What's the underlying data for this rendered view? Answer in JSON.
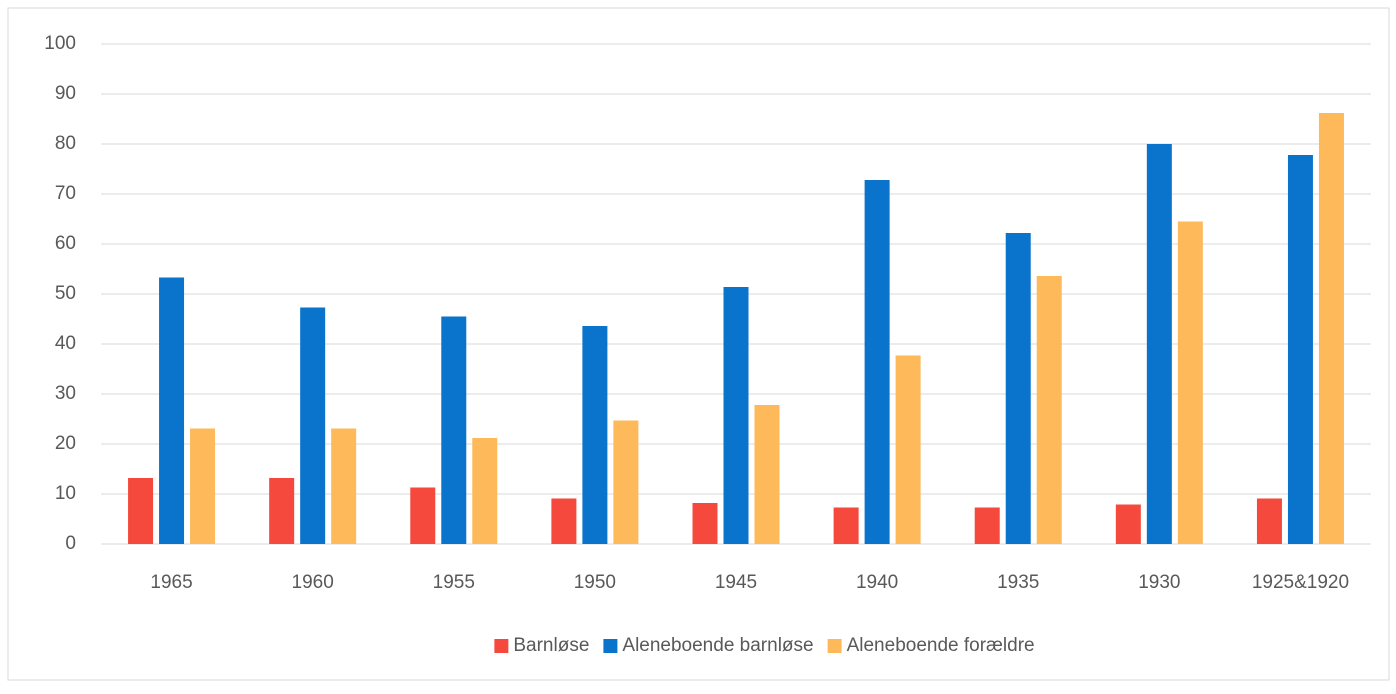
{
  "chart_data": {
    "type": "bar",
    "categories": [
      "1965",
      "1960",
      "1955",
      "1950",
      "1945",
      "1940",
      "1935",
      "1930",
      "1925&1920"
    ],
    "series": [
      {
        "name": "Barnløse",
        "color": "#f5493d",
        "values": [
          13.2,
          13.2,
          11.3,
          9.1,
          8.2,
          7.3,
          7.3,
          7.9,
          9.1
        ]
      },
      {
        "name": "Aleneboende barnløse",
        "color": "#0a73cc",
        "values": [
          53.3,
          47.3,
          45.5,
          43.6,
          51.4,
          72.8,
          62.2,
          80,
          77.8
        ]
      },
      {
        "name": "Aleneboende forældre",
        "color": "#fdb95a",
        "values": [
          23.1,
          23.1,
          21.2,
          24.7,
          27.8,
          37.7,
          53.6,
          64.5,
          86.2
        ]
      }
    ],
    "ylim": [
      0,
      100
    ],
    "yticks": [
      0,
      10,
      20,
      30,
      40,
      50,
      60,
      70,
      80,
      90,
      100
    ],
    "grid": true,
    "legend": "bottom"
  }
}
